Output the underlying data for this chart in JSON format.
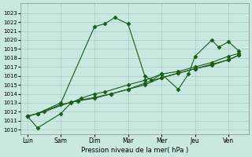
{
  "xlabel": "Pression niveau de la mer( hPa )",
  "background_color": "#c8e8e0",
  "grid_color": "#aacccc",
  "line_color": "#1a5c1a",
  "ylim": [
    1010,
    1024
  ],
  "yticks": [
    1010,
    1011,
    1012,
    1013,
    1014,
    1015,
    1016,
    1017,
    1018,
    1019,
    1020,
    1021,
    1022,
    1023
  ],
  "xtick_labels": [
    "Lun",
    "Sam",
    "Dim",
    "Mar",
    "Mer",
    "Jeu",
    "Ven"
  ],
  "series": [
    [
      1011.5,
      1011.8,
      1013.0,
      1021.5,
      1021.8,
      1022.5,
      1021.8,
      1016.0,
      1015.5,
      1016.2,
      1014.5,
      1016.2,
      1018.2,
      1020.0,
      1019.2,
      1019.8,
      1018.8
    ],
    [
      1011.5,
      1010.2,
      1011.8,
      1013.0,
      1013.5,
      1014.0,
      1014.2,
      1015.0,
      1015.5,
      1016.2,
      1016.5,
      1017.0,
      1017.5,
      1018.2,
      1018.5
    ],
    [
      1011.5,
      1011.8,
      1012.8,
      1013.2,
      1013.5,
      1014.0,
      1014.5,
      1015.2,
      1015.8,
      1016.3,
      1016.8,
      1017.2,
      1017.8,
      1018.3
    ],
    [
      1011.5,
      1012.0,
      1013.1,
      1013.6,
      1014.0,
      1014.5,
      1015.0,
      1015.8,
      1016.3,
      1016.8,
      1017.3,
      1017.8,
      1018.3
    ]
  ],
  "series_x": [
    [
      0,
      0.3,
      1.0,
      2.0,
      2.3,
      2.6,
      3.0,
      3.5,
      3.7,
      4.0,
      4.5,
      4.8,
      5.0,
      5.5,
      5.7,
      6.0,
      6.3
    ],
    [
      0,
      0.3,
      1.0,
      1.3,
      1.6,
      2.0,
      2.3,
      3.0,
      3.5,
      4.0,
      4.5,
      5.0,
      5.5,
      6.0,
      6.3
    ],
    [
      0,
      0.3,
      1.0,
      1.5,
      2.0,
      2.5,
      3.0,
      3.5,
      4.0,
      4.5,
      5.0,
      5.5,
      6.0,
      6.3
    ],
    [
      0,
      0.5,
      1.3,
      2.0,
      2.5,
      3.0,
      3.5,
      4.0,
      4.5,
      5.0,
      5.5,
      6.0,
      6.3
    ]
  ]
}
